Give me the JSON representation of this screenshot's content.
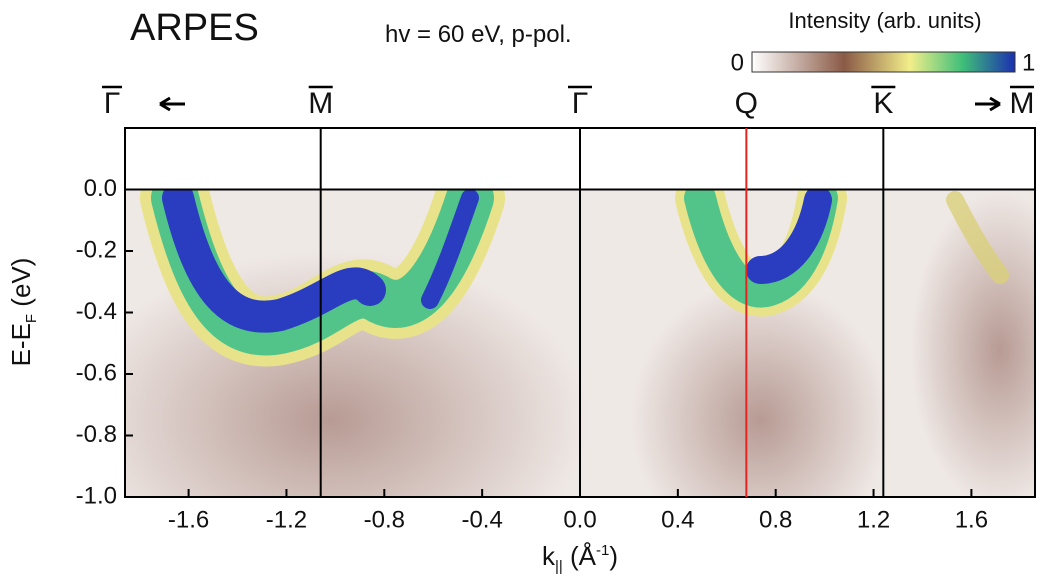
{
  "chart_data": {
    "type": "image",
    "title": "ARPES",
    "subtitle": "hv = 60 eV, p-pol.",
    "colorbar": {
      "label": "Intensity (arb. units)",
      "ticks": [
        0,
        1
      ]
    },
    "xlabel": {
      "base": "k",
      "sub": "||",
      "text": " (Å",
      "sup": "-1",
      "end": ")"
    },
    "ylabel": {
      "base": "E-E",
      "sub": "F",
      "text": " (eV)"
    },
    "xlim": [
      -1.86,
      1.86
    ],
    "ylim": [
      -1.0,
      0.2
    ],
    "xticks": [
      -1.6,
      -1.2,
      -0.8,
      -0.4,
      {
        "value": 0,
        "label": "0.0"
      },
      0.4,
      0.8,
      1.2,
      1.6
    ],
    "yticks": [
      {
        "value": 0,
        "label": "0.0"
      },
      -0.2,
      -0.4,
      -0.6,
      -0.8,
      {
        "value": -1,
        "label": "-1.0"
      }
    ],
    "fermi_level": 0,
    "markers": [
      {
        "label": "M",
        "x": -1.06,
        "color": "#000000"
      },
      {
        "label": "Γ",
        "x": 0,
        "color": "#000000"
      },
      {
        "label": "Q",
        "x": 0.68,
        "color": "#e8231f"
      },
      {
        "label": "K",
        "x": 1.24,
        "color": "#000000"
      }
    ],
    "left_label": "Γ",
    "right_label": "M"
  }
}
